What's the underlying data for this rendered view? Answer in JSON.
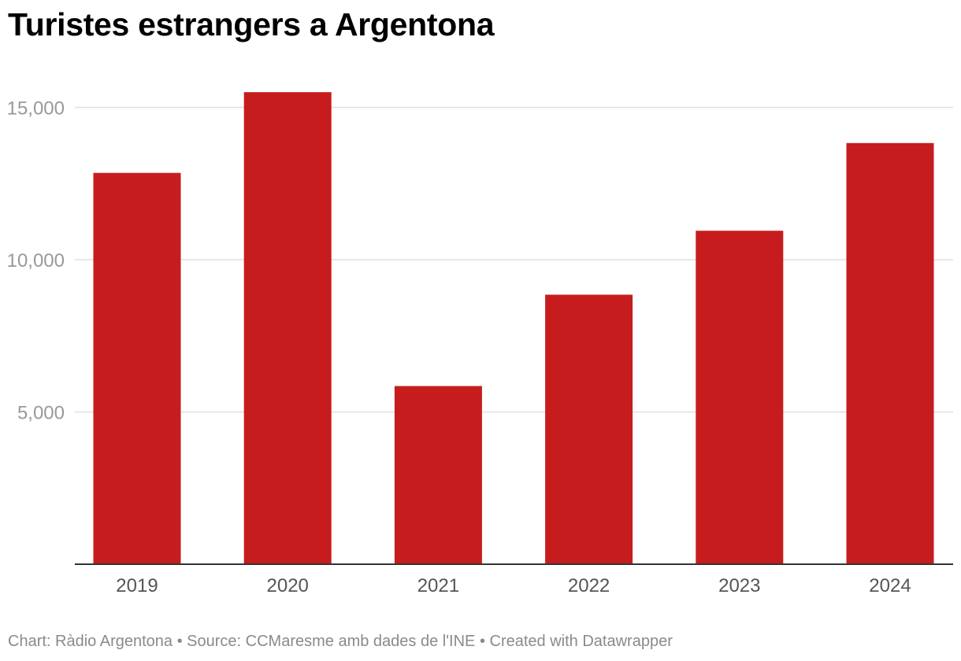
{
  "title": "Turistes estrangers a Argentona",
  "footer": {
    "chart_credit": "Chart: Ràdio Argentona",
    "separator": "•",
    "source": "Source: CCMaresme amb dades de l'INE",
    "created_with": "Created with Datawrapper"
  },
  "colors": {
    "bar": "#c71c1d",
    "gridline": "#e0e0e0",
    "baseline": "#333333"
  },
  "chart_data": {
    "type": "bar",
    "title": "Turistes estrangers a Argentona",
    "xlabel": "",
    "ylabel": "",
    "categories": [
      "2019",
      "2020",
      "2021",
      "2022",
      "2023",
      "2024"
    ],
    "values": [
      12850,
      15500,
      5850,
      8850,
      10950,
      13830
    ],
    "ylim": [
      0,
      15000
    ],
    "yticks": [
      5000,
      10000,
      15000
    ],
    "ytick_labels": [
      "5,000",
      "10,000",
      "15,000"
    ],
    "grid": true,
    "legend": "none"
  }
}
